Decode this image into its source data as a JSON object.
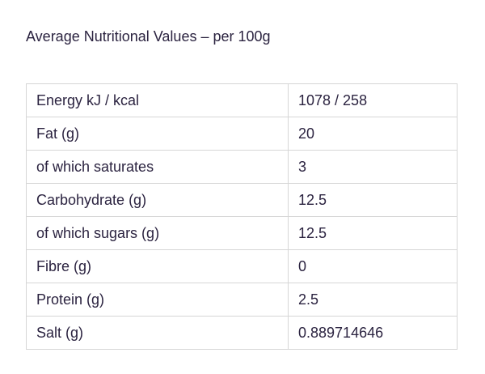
{
  "heading": "Average Nutritional Values – per 100g",
  "rows": [
    {
      "label": "Energy kJ / kcal",
      "value": "1078 / 258"
    },
    {
      "label": "Fat (g)",
      "value": "20"
    },
    {
      "label": "of which saturates",
      "value": "3"
    },
    {
      "label": "Carbohydrate (g)",
      "value": "12.5"
    },
    {
      "label": "of which sugars (g)",
      "value": "12.5"
    },
    {
      "label": "Fibre (g)",
      "value": "0"
    },
    {
      "label": "Protein (g)",
      "value": "2.5"
    },
    {
      "label": "Salt (g)",
      "value": "0.889714646"
    }
  ]
}
